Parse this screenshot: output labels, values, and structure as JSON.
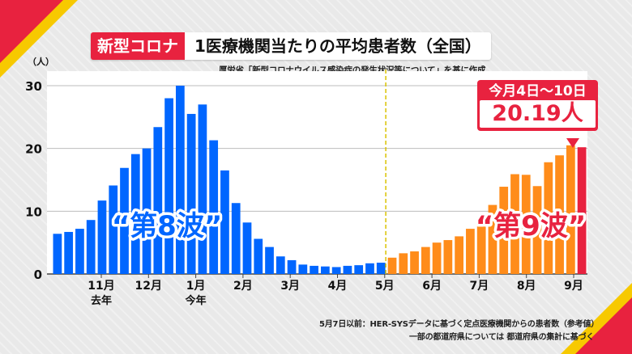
{
  "title": {
    "tag": "新型コロナ",
    "main": "1医療機関当たりの平均患者数（全国）"
  },
  "source": "厚労省「新型コロナウイルス感染症の発生状況等について」を基に作成",
  "callout": {
    "date": "今月4日～10日",
    "value": "20.19人"
  },
  "wave_labels": {
    "wave8": "“第8波”",
    "wave9": "“第9波”"
  },
  "footnotes": [
    "5月7日以前：HER-SYSデータに基づく定点医療機関からの患者数（参考値）",
    "一部の都道府県については 都道府県の集計に基づく"
  ],
  "colors": {
    "blue": "#0066ff",
    "orange": "#ff8c1a",
    "red": "#e8223f",
    "divider": "#d9c200"
  },
  "chart_data": {
    "type": "bar",
    "ylabel": "（人）",
    "ylim": [
      0,
      30
    ],
    "yticks": [
      0,
      10,
      20,
      30
    ],
    "grid": true,
    "month_labels": [
      "11月",
      "12月",
      "1月",
      "2月",
      "3月",
      "4月",
      "5月",
      "6月",
      "7月",
      "8月",
      "9月"
    ],
    "year_labels": [
      {
        "label": "去年",
        "under": "11月"
      },
      {
        "label": "今年",
        "under": "1月"
      }
    ],
    "series": [
      {
        "color": "blue",
        "values": [
          6.4,
          6.7,
          7.2,
          8.6,
          11.7,
          14.1,
          16.9,
          19.1,
          20.0,
          23.4,
          28.0,
          30.0,
          25.5,
          27.0,
          21.3,
          16.5,
          11.3,
          8.2,
          5.6,
          4.3,
          2.8,
          2.2,
          1.5,
          1.3,
          1.2,
          1.1,
          1.3,
          1.4,
          1.7,
          1.8
        ]
      },
      {
        "color": "orange",
        "values": [
          2.6,
          3.3,
          3.6,
          4.3,
          5.0,
          5.4,
          6.0,
          7.2,
          9.1,
          11.0,
          13.9,
          15.9,
          15.8,
          14.0,
          17.8,
          18.9,
          20.5
        ]
      },
      {
        "color": "red",
        "values": [
          20.19
        ]
      }
    ],
    "divider_after_index": 29
  }
}
